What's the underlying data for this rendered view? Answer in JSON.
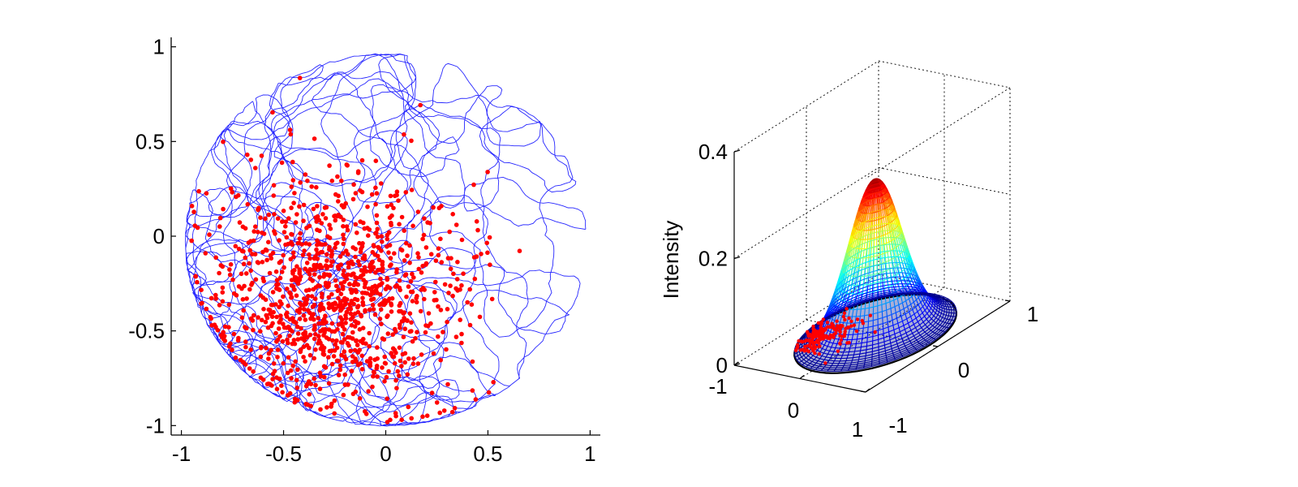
{
  "chart_data": [
    {
      "type": "scatter",
      "title": "",
      "xlabel": "",
      "ylabel": "",
      "xlim": [
        -1.05,
        1.05
      ],
      "ylim": [
        -1.05,
        1.05
      ],
      "xticks": [
        -1,
        -0.5,
        0,
        0.5,
        1
      ],
      "xtick_labels": [
        "-1",
        "-0.5",
        "0",
        "0.5",
        "1"
      ],
      "yticks": [
        -1,
        -0.5,
        0,
        0.5,
        1
      ],
      "yticklabels": [
        "-1",
        "-0.5",
        "0",
        "0.5",
        "1"
      ],
      "grid": false,
      "series": [
        {
          "kind": "trajectory",
          "color": "#0000ff",
          "region": {
            "center": [
              0,
              -0.02
            ],
            "radius": 1.0
          }
        },
        {
          "kind": "points",
          "color": "#ff0000",
          "cluster_center": [
            -0.25,
            -0.3
          ],
          "cluster_spread": 0.3
        }
      ]
    },
    {
      "type": "surface",
      "title": "",
      "xlabel": "",
      "ylabel": "",
      "zlabel": "Intensity",
      "xlim": [
        -1,
        1
      ],
      "ylim": [
        -1,
        1
      ],
      "zlim": [
        0,
        0.4
      ],
      "xticks": [
        -1,
        0,
        1
      ],
      "xtick_labels": [
        "-1",
        "0",
        "1"
      ],
      "yticks": [
        -1,
        0,
        1
      ],
      "yticklabels": [
        "-1",
        "0",
        "1"
      ],
      "zticks": [
        0,
        0.2,
        0.4
      ],
      "ztick_labels": [
        "0",
        "0.2",
        "0.4"
      ],
      "grid": true,
      "peak": {
        "x": 0,
        "y": 0,
        "z": 0.29
      },
      "colormap": "jet"
    }
  ]
}
